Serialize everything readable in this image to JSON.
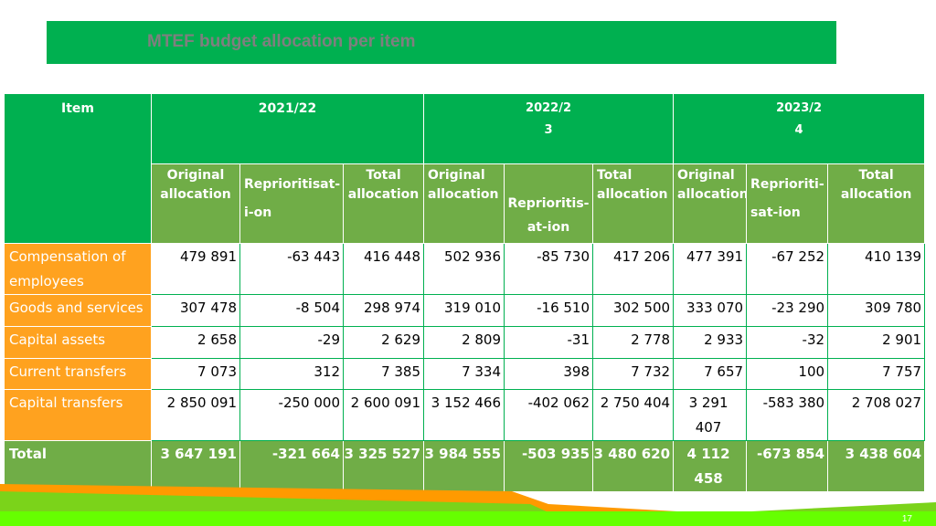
{
  "slide": {
    "title": "MTEF budget allocation per item",
    "page_number": "17"
  },
  "table": {
    "item_header": "Item",
    "years": [
      "2021/22",
      "2022/2\n3",
      "2023/2\n4"
    ],
    "sub_headers": [
      "Original allocation",
      "Reprioritisat-i-on",
      "Total allocation",
      "Original allocation",
      "Reprioritis-at-ion",
      "Total allocation",
      "Original allocation",
      "Reprioriti-sat-ion",
      "Total allocation"
    ],
    "rows": [
      {
        "item": "Compensation of employees",
        "values": [
          "479 891",
          "-63 443",
          "416 448",
          "502 936",
          "-85 730",
          "417 206",
          "477 391",
          "-67 252",
          "410 139"
        ]
      },
      {
        "item": "Goods and services",
        "values": [
          "307 478",
          "-8 504",
          "298 974",
          "319 010",
          "-16 510",
          "302 500",
          "333 070",
          "-23 290",
          "309 780"
        ]
      },
      {
        "item": "Capital assets",
        "values": [
          "2 658",
          "-29",
          "2 629",
          "2 809",
          "-31",
          "2 778",
          "2 933",
          "-32",
          "2 901"
        ]
      },
      {
        "item": "Current transfers",
        "values": [
          "7 073",
          "312",
          "7 385",
          "7 334",
          "398",
          "7 732",
          "7 657",
          "100",
          "7 757"
        ]
      },
      {
        "item": "Capital transfers",
        "values": [
          "2 850 091",
          "-250 000",
          "2 600 091",
          "3 152 466",
          "-402 062",
          "2 750 404",
          "3 291 407",
          "-583 380",
          "2 708 027"
        ]
      }
    ],
    "total": {
      "item": "Total",
      "values": [
        "3 647 191",
        "-321 664",
        "3 325 527",
        "3 984 555",
        "-503 935",
        "3 480 620",
        "4 112 458",
        "-673 854",
        "3 438 604"
      ]
    }
  }
}
